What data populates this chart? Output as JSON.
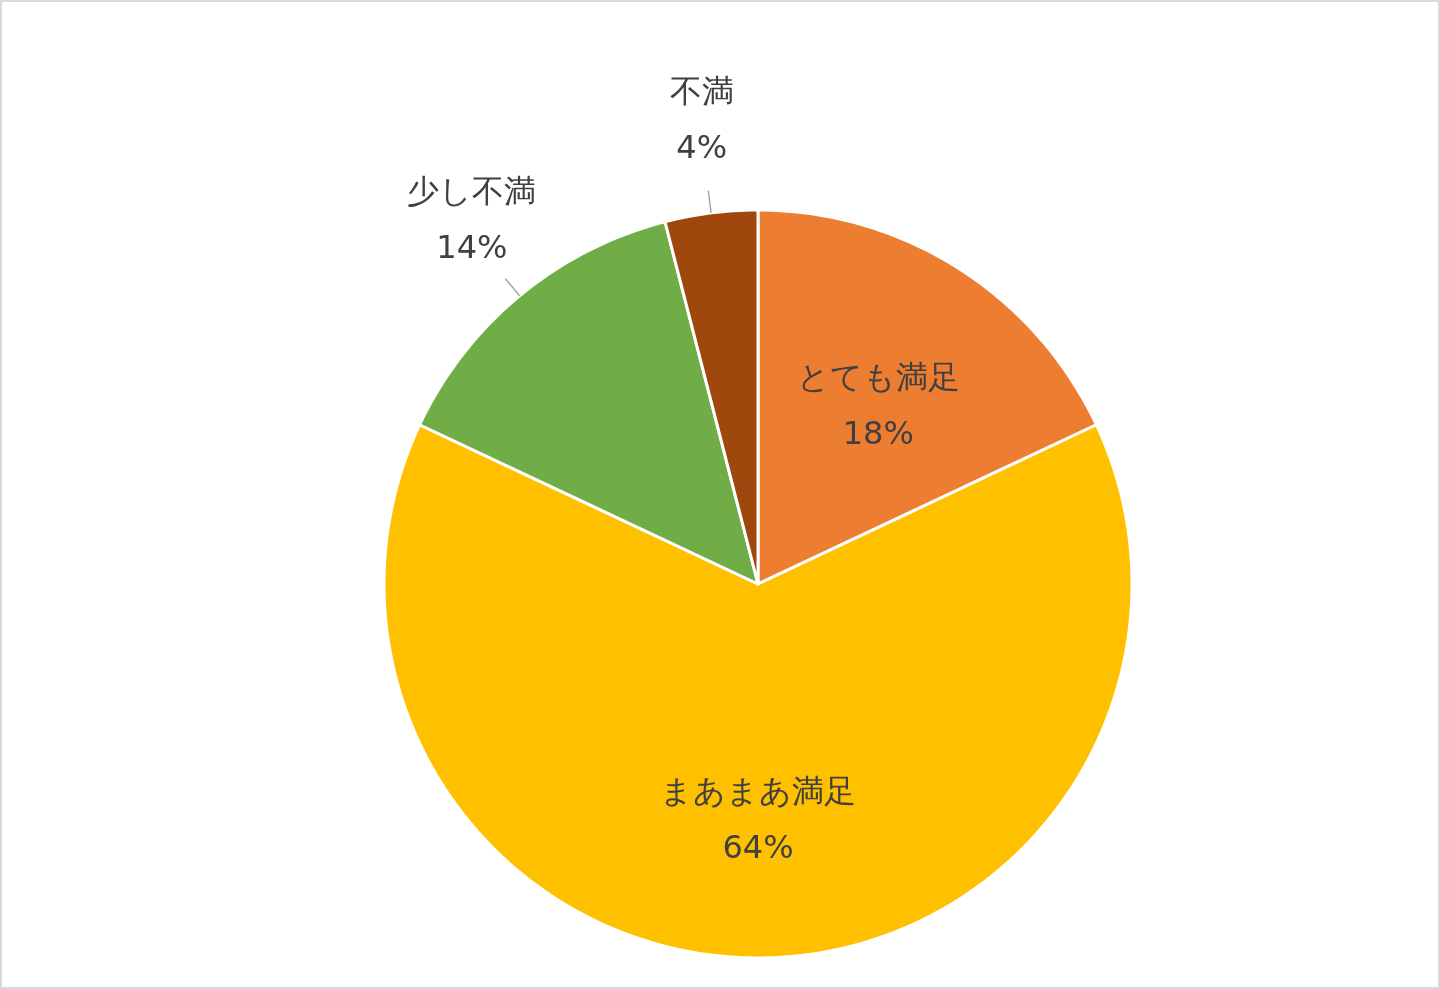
{
  "chart_data": {
    "type": "pie",
    "categories": [
      "とても満足",
      "まあまあ満足",
      "少し不満",
      "不満"
    ],
    "values": [
      18,
      64,
      14,
      4
    ],
    "value_labels": [
      "18%",
      "64%",
      "14%",
      "4%"
    ],
    "colors": [
      "#ed7d31",
      "#ffc000",
      "#70ad47",
      "#9e480e"
    ],
    "legend": false
  }
}
